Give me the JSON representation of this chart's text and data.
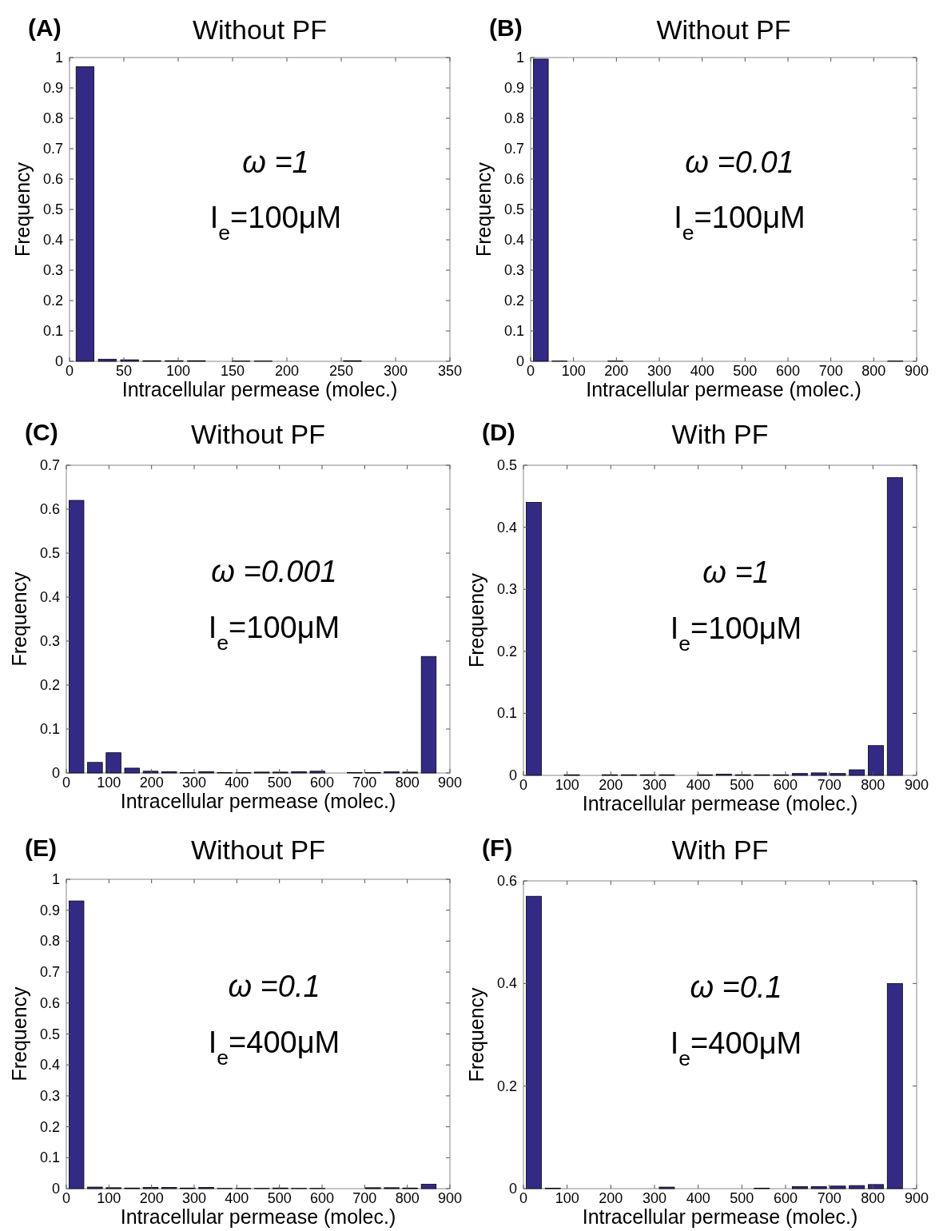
{
  "chart_data": [
    {
      "type": "histogram",
      "title": "Without PF",
      "xlabel": "Intracellular permease (molec.)",
      "ylabel": "Frequency",
      "color": "#332a86",
      "annotations": [
        "(A)",
        "ω =1",
        "I$_{e}$=100μM"
      ],
      "bins": [
        4,
        24.5,
        45,
        65.5,
        86,
        106.5,
        127,
        147.5,
        168,
        188.5,
        209,
        229.5,
        250,
        270.5,
        291,
        311.5,
        332
      ],
      "values": [
        0.97,
        0.007,
        0.005,
        0.002,
        0.002,
        0.002,
        0,
        0.001,
        0.001,
        0,
        0,
        0,
        0.002,
        0,
        0,
        0
      ],
      "xlim": [
        0,
        350
      ],
      "xticks": [
        0,
        50,
        100,
        150,
        200,
        250,
        300,
        350
      ],
      "ylim": [
        0,
        1
      ],
      "yticks": [
        0,
        0.1,
        0.2,
        0.3,
        0.4,
        0.5,
        0.6,
        0.7,
        0.8,
        0.9,
        1
      ]
    },
    {
      "type": "histogram",
      "title": "Without PF",
      "xlabel": "Intracellular permease (molec.)",
      "ylabel": "Frequency",
      "color": "#332a86",
      "annotations": [
        "(B)",
        "ω =0.01",
        "I$_{e}$=100μM"
      ],
      "bins": [
        2,
        45.5,
        89,
        132.5,
        176,
        219.5,
        263,
        306.5,
        350,
        393.5,
        437,
        480.5,
        524,
        567.5,
        611,
        654.5,
        698,
        741.5,
        785,
        828.5,
        872
      ],
      "values": [
        0.995,
        0.001,
        0,
        0,
        0.001,
        0,
        0,
        0,
        0,
        0,
        0,
        0,
        0,
        0,
        0,
        0,
        0,
        0,
        0,
        0.001
      ],
      "xlim": [
        0,
        900
      ],
      "xticks": [
        0,
        100,
        200,
        300,
        400,
        500,
        600,
        700,
        800,
        900
      ],
      "ylim": [
        0,
        1
      ],
      "yticks": [
        0,
        0.1,
        0.2,
        0.3,
        0.4,
        0.5,
        0.6,
        0.7,
        0.8,
        0.9,
        1
      ]
    },
    {
      "type": "histogram",
      "title": "Without PF",
      "xlabel": "Intracellular permease (molec.)",
      "ylabel": "Frequency",
      "color": "#332a86",
      "annotations": [
        "(C)",
        "ω =0.001",
        "I$_{e}$=100μM"
      ],
      "bins": [
        2,
        45.5,
        89,
        132.5,
        176,
        219.5,
        263,
        306.5,
        350,
        393.5,
        437,
        480.5,
        524,
        567.5,
        611,
        654.5,
        698,
        741.5,
        785,
        828.5,
        872
      ],
      "values": [
        0.62,
        0.024,
        0.046,
        0.011,
        0.004,
        0.003,
        0.001,
        0.003,
        0.001,
        0.001,
        0.002,
        0.002,
        0.003,
        0.004,
        0,
        0.001,
        0.001,
        0.003,
        0.002,
        0.265
      ],
      "xlim": [
        0,
        900
      ],
      "xticks": [
        0,
        100,
        200,
        300,
        400,
        500,
        600,
        700,
        800,
        900
      ],
      "ylim": [
        0,
        0.7
      ],
      "yticks": [
        0,
        0.1,
        0.2,
        0.3,
        0.4,
        0.5,
        0.6,
        0.7
      ]
    },
    {
      "type": "histogram",
      "title": "With PF",
      "xlabel": "Intracellular permease (molec.)",
      "ylabel": "Frequency",
      "color": "#332a86",
      "annotations": [
        "(D)",
        "ω =1",
        "I$_{e}$=100μM"
      ],
      "bins": [
        2,
        45.5,
        89,
        132.5,
        176,
        219.5,
        263,
        306.5,
        350,
        393.5,
        437,
        480.5,
        524,
        567.5,
        611,
        654.5,
        698,
        741.5,
        785,
        828.5,
        872
      ],
      "values": [
        0.44,
        0,
        0.001,
        0,
        0.001,
        0.001,
        0.001,
        0.001,
        0,
        0.001,
        0.002,
        0.001,
        0.001,
        0.001,
        0.003,
        0.004,
        0.003,
        0.009,
        0.048,
        0.48
      ],
      "xlim": [
        0,
        900
      ],
      "xticks": [
        0,
        100,
        200,
        300,
        400,
        500,
        600,
        700,
        800,
        900
      ],
      "ylim": [
        0,
        0.5
      ],
      "yticks": [
        0,
        0.1,
        0.2,
        0.3,
        0.4,
        0.5
      ]
    },
    {
      "type": "histogram",
      "title": "Without PF",
      "xlabel": "Intracellular permease (molec.)",
      "ylabel": "Frequency",
      "color": "#332a86",
      "annotations": [
        "(E)",
        "ω =0.1",
        "I$_{e}$=400μM"
      ],
      "bins": [
        2,
        45.5,
        89,
        132.5,
        176,
        219.5,
        263,
        306.5,
        350,
        393.5,
        437,
        480.5,
        524,
        567.5,
        611,
        654.5,
        698,
        741.5,
        785,
        828.5,
        872
      ],
      "values": [
        0.93,
        0.005,
        0.003,
        0.002,
        0.004,
        0.004,
        0.002,
        0.004,
        0.001,
        0.001,
        0.001,
        0.002,
        0.001,
        0.001,
        0,
        0,
        0.003,
        0.003,
        0.002,
        0.014
      ],
      "xlim": [
        0,
        900
      ],
      "xticks": [
        0,
        100,
        200,
        300,
        400,
        500,
        600,
        700,
        800,
        900
      ],
      "ylim": [
        0,
        1
      ],
      "yticks": [
        0,
        0.1,
        0.2,
        0.3,
        0.4,
        0.5,
        0.6,
        0.7,
        0.8,
        0.9,
        1
      ]
    },
    {
      "type": "histogram",
      "title": "With PF",
      "xlabel": "Intracellular permease (molec.)",
      "ylabel": "Frequency",
      "color": "#332a86",
      "annotations": [
        "(F)",
        "ω =0.1",
        "I$_{e}$=400μM"
      ],
      "bins": [
        2,
        45.5,
        89,
        132.5,
        176,
        219.5,
        263,
        306.5,
        350,
        393.5,
        437,
        480.5,
        524,
        567.5,
        611,
        654.5,
        698,
        741.5,
        785,
        828.5,
        872
      ],
      "values": [
        0.57,
        0.001,
        0,
        0,
        0,
        0,
        0,
        0.003,
        0,
        0,
        0,
        0,
        0.001,
        0,
        0.004,
        0.004,
        0.005,
        0.006,
        0.008,
        0.4
      ],
      "xlim": [
        0,
        900
      ],
      "xticks": [
        0,
        100,
        200,
        300,
        400,
        500,
        600,
        700,
        800,
        900
      ],
      "ylim": [
        0,
        0.6
      ],
      "yticks": [
        0,
        0.2,
        0.4,
        0.6
      ]
    }
  ]
}
